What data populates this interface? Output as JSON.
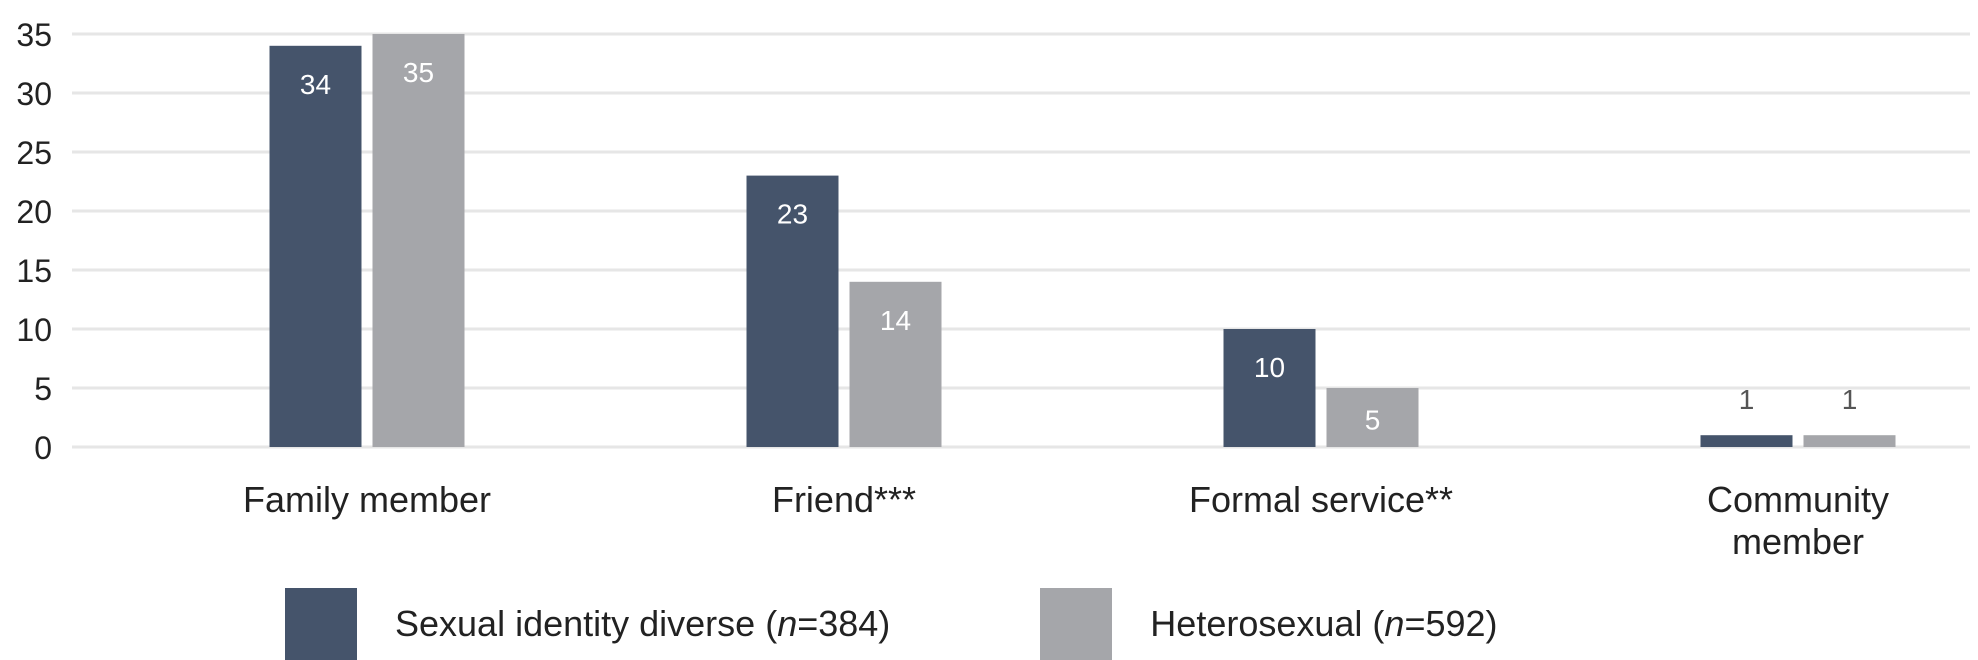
{
  "chart_data": {
    "type": "bar",
    "categories": [
      "Family member",
      "Friend***",
      "Formal service**",
      "Community member"
    ],
    "series": [
      {
        "name": "Sexual identity diverse (n=384)",
        "name_parts": [
          "Sexual identity diverse (",
          "n",
          "=384)"
        ],
        "color": "#45546b",
        "values": [
          34,
          23,
          10,
          1
        ]
      },
      {
        "name": "Heterosexual (n=592)",
        "name_parts": [
          "Heterosexual (",
          "n",
          "=592)"
        ],
        "color": "#a5a6aa",
        "values": [
          35,
          14,
          5,
          1
        ]
      }
    ],
    "yticks": [
      0,
      5,
      10,
      15,
      20,
      25,
      30,
      35
    ],
    "ylim": [
      0,
      35
    ],
    "grid": true,
    "legend": "bottom",
    "title": "",
    "xlabel": "",
    "ylabel": ""
  },
  "colors": {
    "grid": "#e6e6e6",
    "axis_text": "#222222",
    "label_inside": "#ffffff",
    "label_outside": "#555555"
  }
}
